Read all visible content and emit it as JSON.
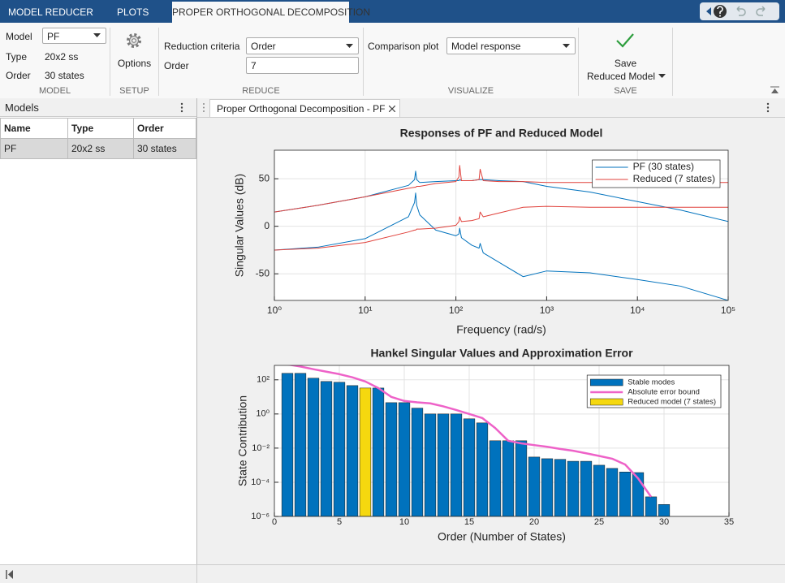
{
  "tabs": [
    "MODEL REDUCER",
    "PLOTS",
    "PROPER ORTHOGONAL DECOMPOSITION"
  ],
  "toolstrip": {
    "model": {
      "model_label": "Model",
      "model_value": "PF",
      "type_label": "Type",
      "type_value": "20x2 ss",
      "order_label": "Order",
      "order_value": "30 states",
      "section": "MODEL"
    },
    "setup": {
      "button": "Options",
      "section": "SETUP"
    },
    "reduce": {
      "criteria_label": "Reduction criteria",
      "criteria_value": "Order",
      "order_label": "Order",
      "order_value": "7",
      "section": "REDUCE"
    },
    "visualize": {
      "plot_label": "Comparison plot",
      "plot_value": "Model response",
      "section": "VISUALIZE"
    },
    "save": {
      "button_line1": "Save",
      "button_line2": "Reduced Model",
      "section": "SAVE"
    }
  },
  "models_panel": {
    "title": "Models",
    "columns": [
      "Name",
      "Type",
      "Order"
    ],
    "rows": [
      [
        "PF",
        "20x2 ss",
        "30 states"
      ]
    ]
  },
  "document_tab": {
    "title": "Proper Orthogonal Decomposition - PF"
  },
  "chart_data": [
    {
      "type": "line",
      "title": "Responses of PF and Reduced Model",
      "xlabel": "Frequency (rad/s)",
      "ylabel": "Singular Values (dB)",
      "xscale": "log",
      "x": [
        1,
        3,
        10,
        30,
        35,
        36,
        37,
        40,
        60,
        100,
        108,
        110,
        115,
        150,
        180,
        185,
        200,
        300,
        550,
        1000,
        3000,
        10000,
        30000,
        100000
      ],
      "xlim": [
        1,
        100000
      ],
      "xticks": [
        {
          "value": 1,
          "label": "10⁰"
        },
        {
          "value": 10,
          "label": "10¹"
        },
        {
          "value": 100,
          "label": "10²"
        },
        {
          "value": 1000,
          "label": "10³"
        },
        {
          "value": 10000,
          "label": "10⁴"
        },
        {
          "value": 100000,
          "label": "10⁵"
        }
      ],
      "ylim": [
        -78,
        80
      ],
      "yticks": [
        -50,
        0,
        50
      ],
      "grid": true,
      "legend": "northeast",
      "series": [
        {
          "name": "PF (30 states)",
          "color": "#0072BD",
          "values": [
            15,
            22,
            31,
            43,
            49,
            58,
            49,
            46,
            47,
            48,
            48,
            49,
            48,
            48,
            49,
            49,
            49,
            48,
            47,
            42,
            36,
            26,
            17,
            5
          ]
        },
        {
          "color": "#0072BD",
          "values": [
            -25,
            -22,
            -13,
            10,
            25,
            35,
            22,
            12,
            -4,
            -10,
            -8,
            -2,
            -12,
            -20,
            -23,
            -18,
            -28,
            -38,
            -53,
            -47,
            -49,
            -56,
            -63,
            -78
          ]
        },
        {
          "name": "Reduced (7 states)",
          "color": "#E0413B",
          "values": [
            15,
            22,
            31,
            40,
            41,
            41,
            42,
            42,
            45,
            47,
            52,
            64,
            48,
            48,
            49,
            60,
            48,
            47,
            47,
            46,
            46,
            46,
            46,
            46
          ]
        },
        {
          "color": "#E0413B",
          "values": [
            -25,
            -23,
            -17,
            -6,
            -4,
            -4,
            -3,
            -3,
            -2,
            1,
            5,
            10,
            5,
            6,
            8,
            15,
            10,
            14,
            20,
            21,
            20,
            20,
            20,
            20
          ]
        }
      ]
    },
    {
      "type": "bar",
      "title": "Hankel Singular Values and Approximation Error",
      "xlabel": "Order (Number of States)",
      "ylabel": "State Contribution",
      "yscale": "log",
      "x": [
        1,
        2,
        3,
        4,
        5,
        6,
        7,
        8,
        9,
        10,
        11,
        12,
        13,
        14,
        15,
        16,
        17,
        18,
        19,
        20,
        21,
        22,
        23,
        24,
        25,
        26,
        27,
        28,
        29,
        30
      ],
      "xlim": [
        0,
        35
      ],
      "xticks": [
        0,
        5,
        10,
        15,
        20,
        25,
        30,
        35
      ],
      "ylim": [
        1e-06,
        700
      ],
      "yticks": [
        {
          "value": 1e-06,
          "label": "10⁻⁶"
        },
        {
          "value": 0.0001,
          "label": "10⁻⁴"
        },
        {
          "value": 0.01,
          "label": "10⁻²"
        },
        {
          "value": 1,
          "label": "10⁰"
        },
        {
          "value": 100,
          "label": "10²"
        }
      ],
      "grid": true,
      "legend": "northeast",
      "series": [
        {
          "name": "Stable modes",
          "color": "#0072BD",
          "values": [
            240,
            240,
            125,
            80,
            72,
            46,
            null,
            33,
            4.6,
            4.6,
            2.2,
            1.0,
            1.0,
            1.0,
            0.52,
            0.3,
            0.027,
            0.027,
            0.027,
            0.003,
            0.0024,
            0.0022,
            0.0017,
            0.0017,
            0.001,
            0.00065,
            0.0004,
            0.00037,
            1.4e-05,
            5e-06
          ]
        },
        {
          "name": "Absolute error bound",
          "type": "line",
          "color": "#EE62C8",
          "values": [
            800,
            600,
            420,
            300,
            215,
            140,
            80,
            33,
            10,
            5.8,
            4.8,
            4.2,
            2.8,
            1.7,
            1.0,
            0.58,
            0.15,
            0.027,
            0.019,
            0.015,
            0.012,
            0.009,
            0.007,
            0.005,
            0.0035,
            0.0024,
            0.0011,
            0.00017,
            1.4e-05,
            null
          ]
        },
        {
          "name": "Reduced model (7 states)",
          "color": "#F5D80F",
          "values": [
            null,
            null,
            null,
            null,
            null,
            null,
            33,
            null,
            null,
            null,
            null,
            null,
            null,
            null,
            null,
            null,
            null,
            null,
            null,
            null,
            null,
            null,
            null,
            null,
            null,
            null,
            null,
            null,
            null,
            null
          ]
        }
      ]
    }
  ]
}
